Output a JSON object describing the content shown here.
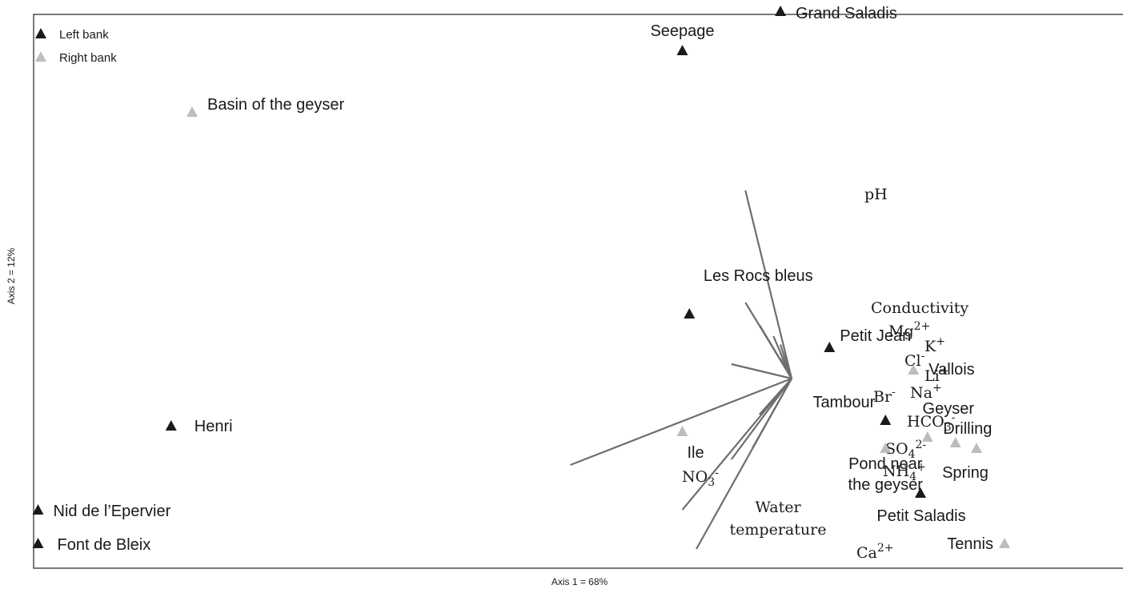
{
  "chart_data": {
    "type": "scatter",
    "subtype": "ordination biplot",
    "xlabel": "Axis 1 = 68%",
    "ylabel": "Axis 2 = 12%",
    "grid": false,
    "legend_position": "top-left",
    "legend": [
      {
        "name": "Left bank",
        "color": "#1a1a1a"
      },
      {
        "name": "Right bank",
        "color": "#bdbdbd"
      }
    ],
    "sites": [
      {
        "name": "Grand Saladis",
        "group": "Left bank",
        "x": 1.0,
        "y": 0.98
      },
      {
        "name": "Seepage",
        "group": "Left bank",
        "x": 0.86,
        "y": 0.91
      },
      {
        "name": "Basin of the geyser",
        "group": "Right bank",
        "x": 0.16,
        "y": 0.8
      },
      {
        "name": "Les Rocs bleus",
        "group": "Left bank",
        "x": 0.87,
        "y": 0.44
      },
      {
        "name": "Petit Jean",
        "group": "Left bank",
        "x": 1.07,
        "y": 0.38
      },
      {
        "name": "Vallois",
        "group": "Right bank",
        "x": 1.19,
        "y": 0.34
      },
      {
        "name": "Tambour",
        "group": "Left bank",
        "x": 1.15,
        "y": 0.25
      },
      {
        "name": "Geyser",
        "group": "Right bank",
        "x": 1.21,
        "y": 0.22
      },
      {
        "name": "Drilling",
        "group": "Right bank",
        "x": 1.25,
        "y": 0.21
      },
      {
        "name": "Spring",
        "group": "Right bank",
        "x": 1.28,
        "y": 0.2
      },
      {
        "name": "Pond near the geyser",
        "group": "Right bank",
        "x": 1.15,
        "y": 0.2
      },
      {
        "name": "Ile",
        "group": "Right bank",
        "x": 0.86,
        "y": 0.23
      },
      {
        "name": "Petit Saladis",
        "group": "Left bank",
        "x": 1.2,
        "y": 0.12
      },
      {
        "name": "Henri",
        "group": "Left bank",
        "x": 0.13,
        "y": 0.24
      },
      {
        "name": "Nid de l'Epervier",
        "group": "Left bank",
        "x": -0.06,
        "y": 0.09
      },
      {
        "name": "Font de Bleix",
        "group": "Left bank",
        "x": -0.06,
        "y": 0.03
      },
      {
        "name": "Tennis",
        "group": "Right bank",
        "x": 1.32,
        "y": 0.03
      }
    ],
    "variables": [
      {
        "name": "pH",
        "base": "pH",
        "sup": "",
        "sub": "",
        "x": 0.95,
        "y": 0.66
      },
      {
        "name": "Conductivity",
        "base": "Conductivity",
        "sup": "",
        "sub": "",
        "x": 0.95,
        "y": 0.46
      },
      {
        "name": "Mg2+",
        "base": "Mg",
        "sup": "2+",
        "sub": "",
        "x": 0.97,
        "y": 0.42
      },
      {
        "name": "K+",
        "base": "K",
        "sup": "+",
        "sub": "",
        "x": 0.99,
        "y": 0.4
      },
      {
        "name": "Cl-",
        "base": "Cl",
        "sup": "-",
        "sub": "",
        "x": 1.0,
        "y": 0.385
      },
      {
        "name": "Li+",
        "base": "Li",
        "sup": "+",
        "sub": "",
        "x": 1.0,
        "y": 0.37
      },
      {
        "name": "Na+",
        "base": "Na",
        "sup": "+",
        "sub": "",
        "x": 1.0,
        "y": 0.36
      },
      {
        "name": "Br-",
        "base": "Br",
        "sup": "-",
        "sub": "",
        "x": 0.93,
        "y": 0.35
      },
      {
        "name": "HCO3-",
        "base": "HCO",
        "sup": "-",
        "sub": "3",
        "x": 0.97,
        "y": 0.26
      },
      {
        "name": "SO42-",
        "base": "SO",
        "sup": "2-",
        "sub": "4",
        "x": 0.96,
        "y": 0.2
      },
      {
        "name": "NH4+",
        "base": "NH",
        "sup": "+",
        "sub": "4",
        "x": 0.93,
        "y": 0.18
      },
      {
        "name": "NO3-",
        "base": "NO",
        "sup": "-",
        "sub": "3",
        "x": 0.7,
        "y": 0.17
      },
      {
        "name": "Water temperature",
        "base": "Water temperature",
        "sup": "",
        "sub": "",
        "x": 0.86,
        "y": 0.09
      },
      {
        "name": "Ca2+",
        "base": "Ca",
        "sup": "2+",
        "sub": "",
        "x": 0.88,
        "y": 0.02
      }
    ]
  }
}
